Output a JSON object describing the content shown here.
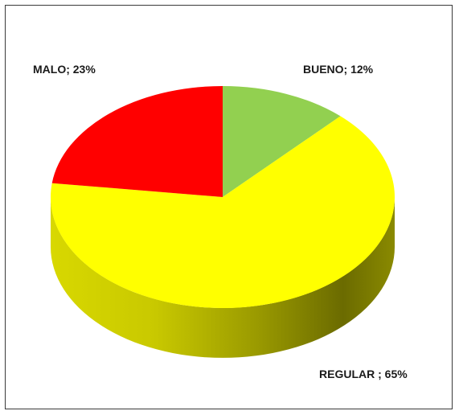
{
  "chart_data": {
    "type": "pie",
    "title": "",
    "slices": [
      {
        "label": "BUENO",
        "value": 12,
        "display": "BUENO; 12%",
        "color": "#92d050"
      },
      {
        "label": "REGULAR",
        "value": 65,
        "display": "REGULAR ; 65%",
        "color": "#ffff00"
      },
      {
        "label": "MALO",
        "value": 23,
        "display": "MALO; 23%",
        "color": "#ff0000"
      }
    ],
    "style": "3d"
  }
}
